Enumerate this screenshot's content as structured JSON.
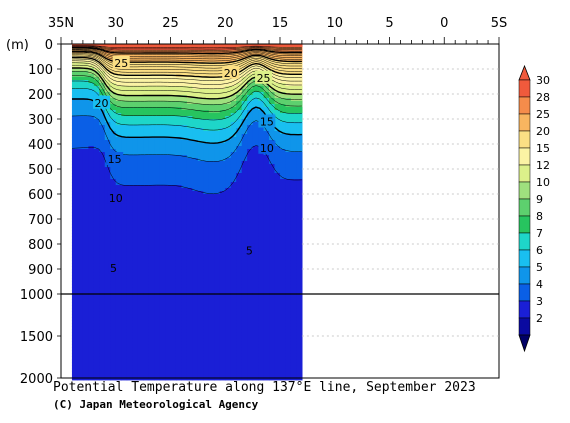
{
  "chart_data": {
    "type": "contour",
    "title": "Potential Temperature along 137°E line, September 2023",
    "credit": "(C) Japan Meteorological Agency",
    "y_unit": "(m)",
    "x_ticks": [
      "35N",
      "30",
      "25",
      "20",
      "15",
      "10",
      "5",
      "0",
      "5S"
    ],
    "y_ticks_upper": [
      "0",
      "100",
      "200",
      "300",
      "400",
      "500",
      "600",
      "700",
      "800",
      "900",
      "1000"
    ],
    "y_ticks_lower": [
      "1500",
      "2000"
    ],
    "colorbar": {
      "levels": [
        "30",
        "28",
        "25",
        "20",
        "15",
        "12",
        "10",
        "9",
        "8",
        "7",
        "6",
        "5",
        "4",
        "3",
        "2"
      ],
      "colors": [
        "#f05a3c",
        "#f58c4b",
        "#f8b560",
        "#fbdf84",
        "#fbf3a4",
        "#dcf08a",
        "#9fe07e",
        "#5dd06e",
        "#27c45f",
        "#1ed6c9",
        "#19bff0",
        "#0f95ea",
        "#0a5fe6",
        "#1a1fd6",
        "#0a0aa0"
      ]
    },
    "contour_labels": [
      {
        "text": "25",
        "lat": 29.5,
        "depth": 75
      },
      {
        "text": "20",
        "lat": 19.5,
        "depth": 115
      },
      {
        "text": "25",
        "lat": 16.5,
        "depth": 135
      },
      {
        "text": "20",
        "lat": 31.3,
        "depth": 235
      },
      {
        "text": "15",
        "lat": 16.2,
        "depth": 310
      },
      {
        "text": "10",
        "lat": 16.2,
        "depth": 415
      },
      {
        "text": "15",
        "lat": 30.1,
        "depth": 460
      },
      {
        "text": "10",
        "lat": 30.0,
        "depth": 615
      },
      {
        "text": "5",
        "lat": 17.8,
        "depth": 825
      },
      {
        "text": "5",
        "lat": 30.2,
        "depth": 895
      }
    ],
    "section": {
      "lat_start": 34.0,
      "lat_end": 13.0
    },
    "x_range": [
      "35N",
      "5S"
    ],
    "y_range_m": [
      0,
      2000
    ],
    "y_scale_break_m": 1000
  }
}
